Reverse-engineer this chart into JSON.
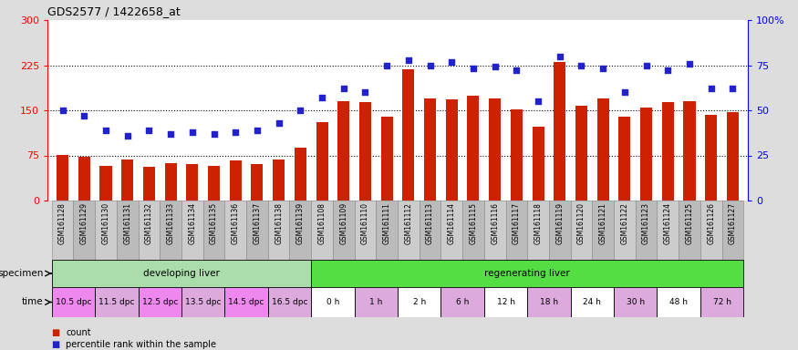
{
  "title": "GDS2577 / 1422658_at",
  "samples": [
    "GSM161128",
    "GSM161129",
    "GSM161130",
    "GSM161131",
    "GSM161132",
    "GSM161133",
    "GSM161134",
    "GSM161135",
    "GSM161136",
    "GSM161137",
    "GSM161138",
    "GSM161139",
    "GSM161108",
    "GSM161109",
    "GSM161110",
    "GSM161111",
    "GSM161112",
    "GSM161113",
    "GSM161114",
    "GSM161115",
    "GSM161116",
    "GSM161117",
    "GSM161118",
    "GSM161119",
    "GSM161120",
    "GSM161121",
    "GSM161122",
    "GSM161123",
    "GSM161124",
    "GSM161125",
    "GSM161126",
    "GSM161127"
  ],
  "bar_values": [
    76,
    72,
    58,
    68,
    56,
    62,
    60,
    57,
    66,
    60,
    68,
    88,
    130,
    165,
    163,
    140,
    218,
    170,
    168,
    175,
    170,
    152,
    122,
    230,
    158,
    170,
    140,
    155,
    163,
    165,
    143,
    147
  ],
  "dot_values": [
    50,
    47,
    39,
    36,
    39,
    37,
    38,
    37,
    38,
    39,
    43,
    50,
    57,
    62,
    60,
    75,
    78,
    75,
    77,
    73,
    74,
    72,
    55,
    80,
    75,
    73,
    60,
    75,
    72,
    76,
    62,
    62
  ],
  "bar_color": "#cc2200",
  "dot_color": "#2222cc",
  "ylim_left": [
    0,
    300
  ],
  "ylim_right": [
    0,
    100
  ],
  "yticks_left": [
    0,
    75,
    150,
    225,
    300
  ],
  "yticks_right": [
    0,
    25,
    50,
    75,
    100
  ],
  "ytick_labels_right": [
    "0",
    "25",
    "50",
    "75",
    "100%"
  ],
  "hlines": [
    75,
    150,
    225
  ],
  "specimen_groups": [
    {
      "label": "developing liver",
      "start": 0,
      "end": 12,
      "color": "#aaddaa"
    },
    {
      "label": "regenerating liver",
      "start": 12,
      "end": 32,
      "color": "#55dd44"
    }
  ],
  "time_groups": [
    {
      "label": "10.5 dpc",
      "start": 0,
      "end": 2,
      "color": "#ee88ee"
    },
    {
      "label": "11.5 dpc",
      "start": 2,
      "end": 4,
      "color": "#ddaadd"
    },
    {
      "label": "12.5 dpc",
      "start": 4,
      "end": 6,
      "color": "#ee88ee"
    },
    {
      "label": "13.5 dpc",
      "start": 6,
      "end": 8,
      "color": "#ddaadd"
    },
    {
      "label": "14.5 dpc",
      "start": 8,
      "end": 10,
      "color": "#ee88ee"
    },
    {
      "label": "16.5 dpc",
      "start": 10,
      "end": 12,
      "color": "#ddaadd"
    },
    {
      "label": "0 h",
      "start": 12,
      "end": 14,
      "color": "#ffffff"
    },
    {
      "label": "1 h",
      "start": 14,
      "end": 16,
      "color": "#ddaadd"
    },
    {
      "label": "2 h",
      "start": 16,
      "end": 18,
      "color": "#ffffff"
    },
    {
      "label": "6 h",
      "start": 18,
      "end": 20,
      "color": "#ddaadd"
    },
    {
      "label": "12 h",
      "start": 20,
      "end": 22,
      "color": "#ffffff"
    },
    {
      "label": "18 h",
      "start": 22,
      "end": 24,
      "color": "#ddaadd"
    },
    {
      "label": "24 h",
      "start": 24,
      "end": 26,
      "color": "#ffffff"
    },
    {
      "label": "30 h",
      "start": 26,
      "end": 28,
      "color": "#ddaadd"
    },
    {
      "label": "48 h",
      "start": 28,
      "end": 30,
      "color": "#ffffff"
    },
    {
      "label": "72 h",
      "start": 30,
      "end": 32,
      "color": "#ddaadd"
    }
  ],
  "specimen_label": "specimen",
  "time_label": "time",
  "legend_bar_label": "count",
  "legend_dot_label": "percentile rank within the sample",
  "fig_bg_color": "#dddddd",
  "plot_bg_color": "#ffffff",
  "xtick_box_even": "#cccccc",
  "xtick_box_odd": "#bbbbbb"
}
